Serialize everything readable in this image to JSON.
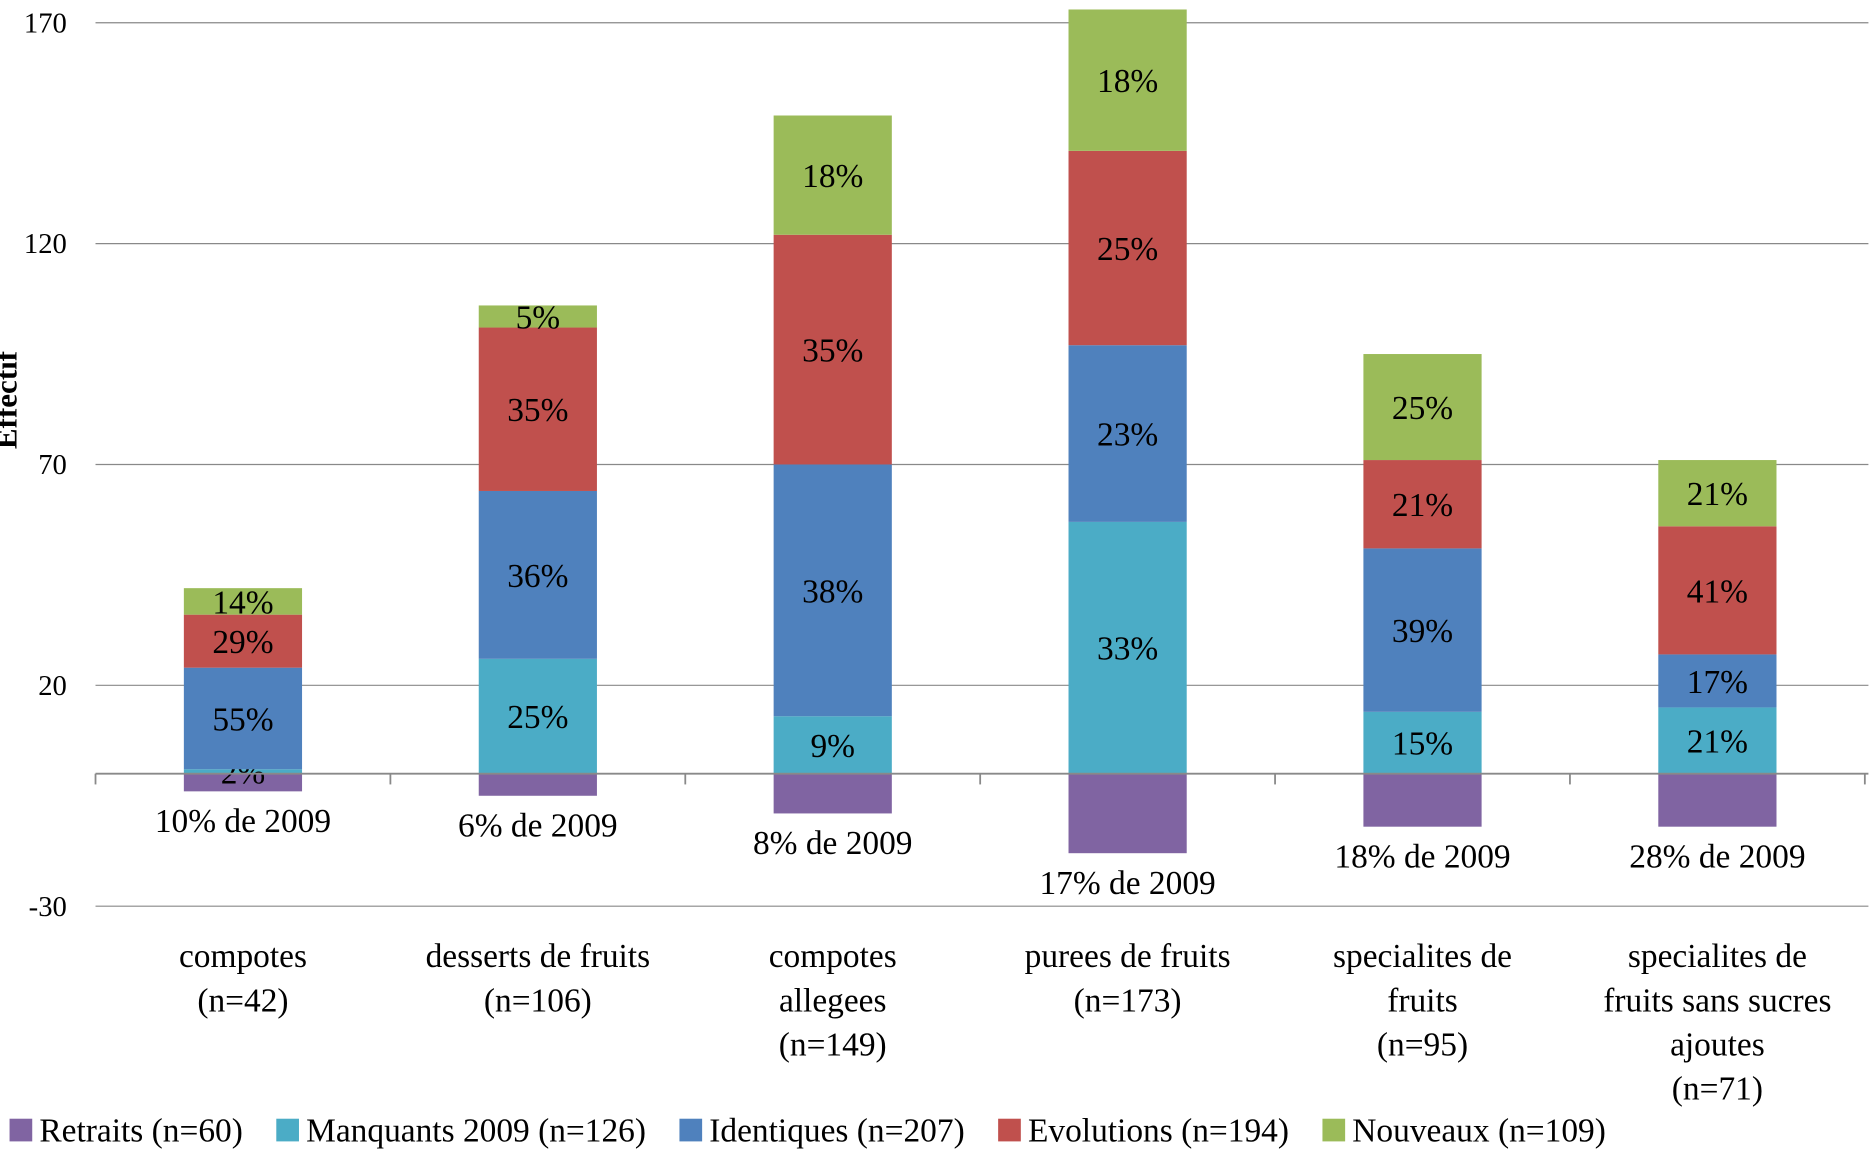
{
  "chart_data": {
    "type": "stacked_bar",
    "y_label": "Effectif",
    "categories": [
      "compotes\n(n=42)",
      "desserts de fruits\n(n=106)",
      "compotes\nallegees\n(n=149)",
      "purees de fruits\n(n=173)",
      "specialites de\nfruits\n(n=95)",
      "specialites de\nfruits sans sucres\najoutes\n(n=71)"
    ],
    "series": [
      {
        "name": "Retraits (n=60)",
        "color": "#8064a2",
        "values": [
          -4,
          -5,
          -9,
          -18,
          -12,
          -12
        ],
        "value_labels": [
          "10% de 2009",
          "6% de 2009",
          "8% de 2009",
          "17% de 2009",
          "18% de 2009",
          "28% de 2009"
        ]
      },
      {
        "name": "Manquants 2009 (n=126)",
        "color": "#4bacc6",
        "values": [
          1,
          26,
          13,
          57,
          14,
          15
        ],
        "value_labels": [
          "2%",
          "25%",
          "9%",
          "33%",
          "15%",
          "21%"
        ]
      },
      {
        "name": "Identiques (n=207)",
        "color": "#4f81bd",
        "values": [
          23,
          38,
          57,
          40,
          37,
          12
        ],
        "value_labels": [
          "55%",
          "36%",
          "38%",
          "23%",
          "39%",
          "17%"
        ]
      },
      {
        "name": "Evolutions (n=194)",
        "color": "#c0504d",
        "values": [
          12,
          37,
          52,
          44,
          20,
          29
        ],
        "value_labels": [
          "29%",
          "35%",
          "35%",
          "25%",
          "21%",
          "41%"
        ]
      },
      {
        "name": "Nouveaux (n=109)",
        "color": "#9bbb59",
        "values": [
          6,
          5,
          27,
          32,
          24,
          15
        ],
        "value_labels": [
          "14%",
          "5%",
          "18%",
          "18%",
          "25%",
          "21%"
        ]
      }
    ],
    "ylim": [
      -30,
      170
    ],
    "yticks": [
      -30,
      20,
      70,
      120,
      170
    ],
    "grid": true,
    "legend": "bottom"
  }
}
